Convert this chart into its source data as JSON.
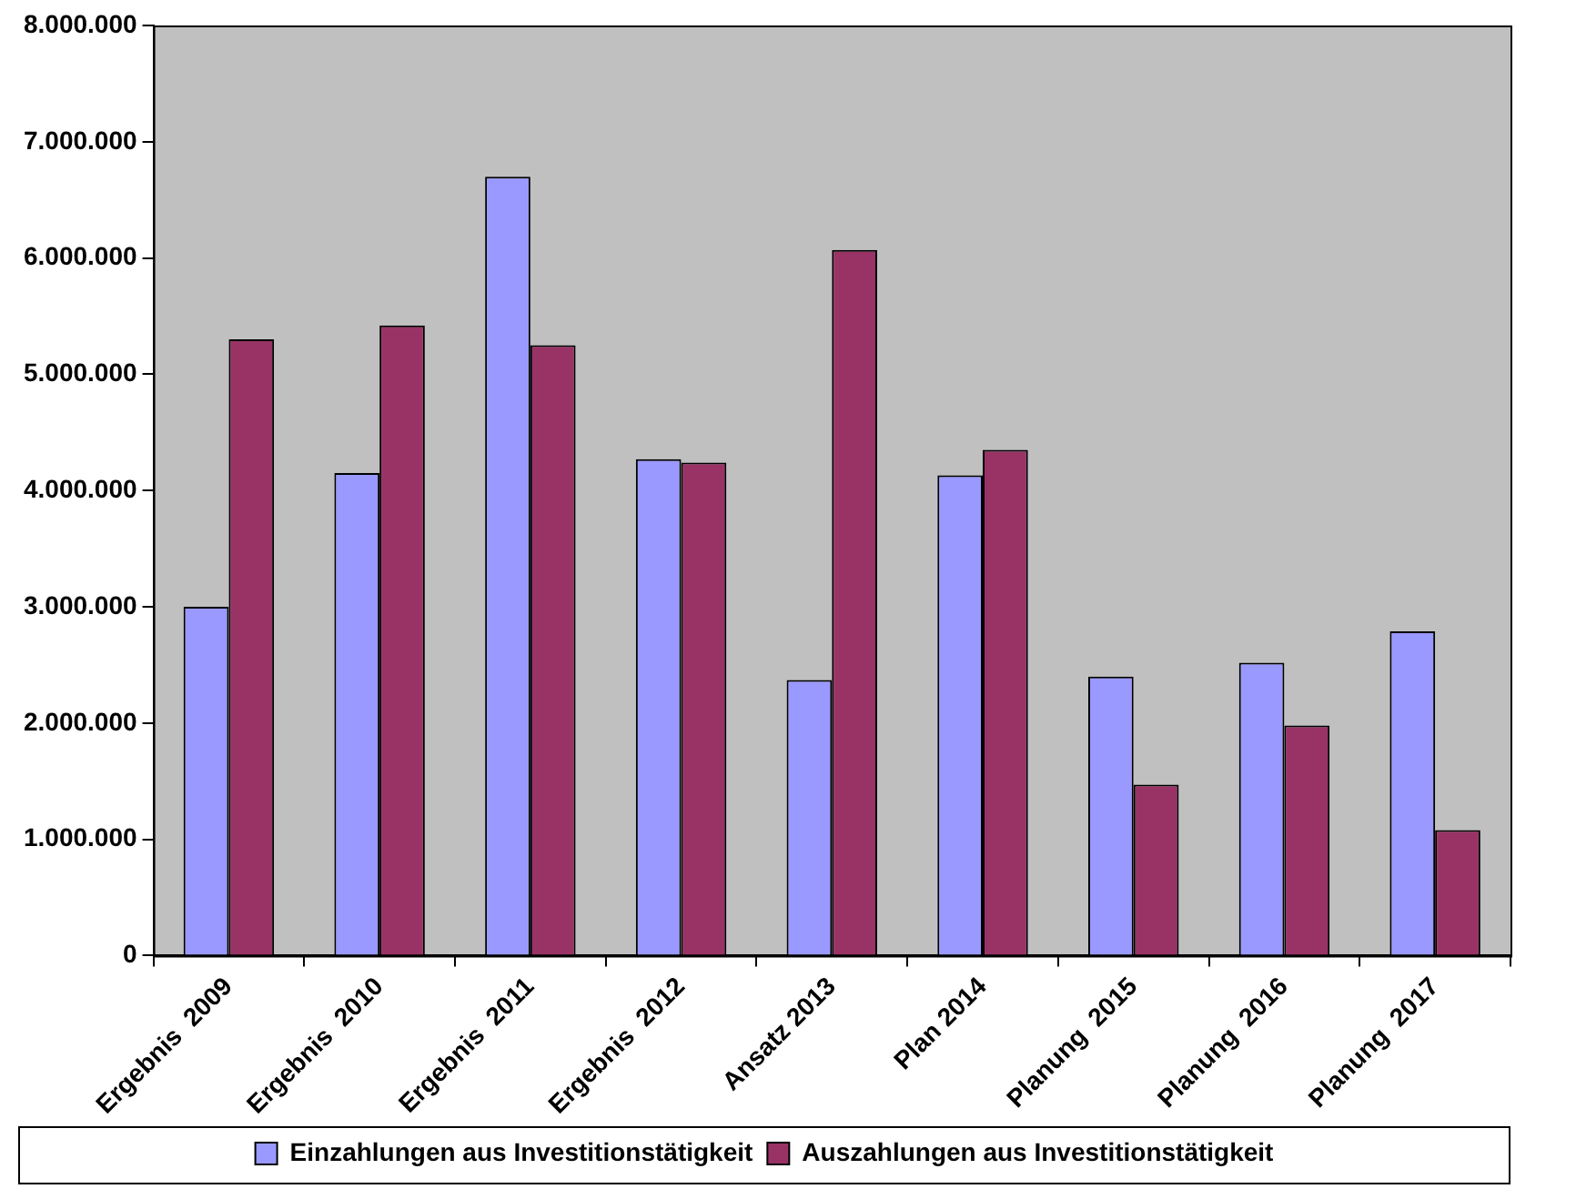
{
  "chart_data": {
    "type": "bar",
    "categories": [
      "Ergebnis  2009",
      "Ergebnis  2010",
      "Ergebnis  2011",
      "Ergebnis  2012",
      "Ansatz 2013",
      "Plan 2014",
      "Planung  2015",
      "Planung  2016",
      "Planung  2017"
    ],
    "series": [
      {
        "name": "Einzahlungen aus Investitionstätigkeit",
        "color": "#9999ff",
        "values": [
          3000000,
          4150000,
          6700000,
          4270000,
          2370000,
          4130000,
          2400000,
          2520000,
          2790000
        ]
      },
      {
        "name": "Auszahlungen aus Investitionstätigkeit",
        "color": "#993366",
        "values": [
          5300000,
          5420000,
          5250000,
          4240000,
          6070000,
          4350000,
          1470000,
          1980000,
          1080000
        ]
      }
    ],
    "ylim": [
      0,
      8000000
    ],
    "yticks": [
      {
        "value": 0,
        "label": "0"
      },
      {
        "value": 1000000,
        "label": "1.000.000"
      },
      {
        "value": 2000000,
        "label": "2.000.000"
      },
      {
        "value": 3000000,
        "label": "3.000.000"
      },
      {
        "value": 4000000,
        "label": "4.000.000"
      },
      {
        "value": 5000000,
        "label": "5.000.000"
      },
      {
        "value": 6000000,
        "label": "6.000.000"
      },
      {
        "value": 7000000,
        "label": "7.000.000"
      },
      {
        "value": 8000000,
        "label": "8.000.000"
      }
    ],
    "grid": false,
    "legend": "bottom"
  }
}
